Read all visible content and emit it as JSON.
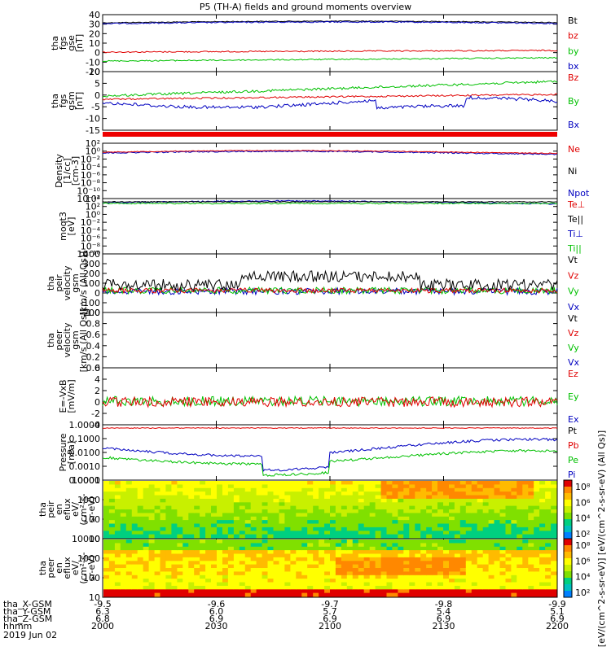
{
  "title": "P5 (TH-A) fields and ground moments overview",
  "chart_data": [
    {
      "id": "fgs_gse",
      "type": "line",
      "ylabel": [
        "tha",
        "fgs",
        "gse",
        "[nT]"
      ],
      "yticks": [
        "40",
        "30",
        "20",
        "10",
        "0",
        "-10",
        "-20"
      ],
      "ylim": [
        -20,
        40
      ],
      "series": [
        {
          "name": "Bt",
          "color": "#000000",
          "level": 33
        },
        {
          "name": "bz",
          "color": "#e00000",
          "level": -1
        },
        {
          "name": "by",
          "color": "#00c000",
          "level": -10
        },
        {
          "name": "bx",
          "color": "#0000c0",
          "level": 33
        }
      ]
    },
    {
      "id": "fgs_gsm",
      "type": "line",
      "ylabel": [
        "tha",
        "fgs",
        "gsm",
        "[nT]"
      ],
      "yticks": [
        "10",
        "5",
        "0",
        "-5",
        "-10",
        "-15"
      ],
      "ylim": [
        -18,
        10
      ],
      "series": [
        {
          "name": "Bz",
          "color": "#e00000",
          "level": -2
        },
        {
          "name": "By",
          "color": "#00c000",
          "level": 1
        },
        {
          "name": "Bx",
          "color": "#0000c0",
          "level": -4
        }
      ]
    },
    {
      "id": "density",
      "type": "line",
      "ylabel": [
        "Density",
        "[1/cc]",
        "[cm-3]"
      ],
      "yticks": [
        "10²",
        "10⁰",
        "10⁻²",
        "10⁻⁴",
        "10⁻⁶",
        "10⁻⁸",
        "10⁻¹⁰",
        "10⁻¹²"
      ],
      "series": [
        {
          "name": "Ne",
          "color": "#e00000"
        },
        {
          "name": "Ni",
          "color": "#000000"
        },
        {
          "name": "Npot",
          "color": "#0000c0"
        }
      ]
    },
    {
      "id": "temperature",
      "type": "line",
      "ylabel": [
        "moqt3",
        "[eV]"
      ],
      "yticks": [
        "10⁴",
        "10²",
        "10⁰",
        "10⁻²",
        "10⁻⁴",
        "10⁻⁶",
        "10⁻⁸",
        "10⁻¹⁰"
      ],
      "series": [
        {
          "name": "Te⊥",
          "color": "#e00000"
        },
        {
          "name": "Te||",
          "color": "#000000"
        },
        {
          "name": "Ti⊥",
          "color": "#0000c0"
        },
        {
          "name": "Ti||",
          "color": "#00c000"
        }
      ]
    },
    {
      "id": "peir_velocity",
      "type": "line",
      "ylabel": [
        "tha",
        "peir",
        "velocity",
        "gsm",
        "[km/s (All Qs)]"
      ],
      "yticks": [
        "400",
        "300",
        "200",
        "100",
        "0",
        "-100",
        "-200"
      ],
      "ylim": [
        -200,
        400
      ],
      "series": [
        {
          "name": "Vt",
          "color": "#000000"
        },
        {
          "name": "Vz",
          "color": "#e00000"
        },
        {
          "name": "Vy",
          "color": "#00c000"
        },
        {
          "name": "Vx",
          "color": "#0000c0"
        }
      ]
    },
    {
      "id": "peer_velocity",
      "type": "line",
      "ylabel": [
        "tha",
        "peer",
        "velocity",
        "gsm",
        "[km/s (All Qs)]"
      ],
      "yticks": [
        "1.0",
        "0.8",
        "0.6",
        "0.4",
        "0.2",
        "0.0"
      ],
      "ylim": [
        0,
        1
      ],
      "series": [
        {
          "name": "Vt",
          "color": "#000000"
        },
        {
          "name": "Vz",
          "color": "#e00000"
        },
        {
          "name": "Vy",
          "color": "#00c000"
        },
        {
          "name": "Vx",
          "color": "#0000c0"
        }
      ]
    },
    {
      "id": "efield",
      "type": "line",
      "ylabel": [
        "E=-VxB",
        "[mV/m]"
      ],
      "yticks": [
        "6",
        "4",
        "2",
        "0",
        "-2",
        "-4"
      ],
      "ylim": [
        -4,
        6
      ],
      "series": [
        {
          "name": "Ez",
          "color": "#e00000"
        },
        {
          "name": "Ey",
          "color": "#00c000"
        },
        {
          "name": "Ex",
          "color": "#0000c0"
        }
      ]
    },
    {
      "id": "pressure",
      "type": "line",
      "ylabel": [
        "Pressure",
        "[nPa]"
      ],
      "yticks": [
        "1.0000",
        "0.1000",
        "0.0100",
        "0.0010",
        "0.0001"
      ],
      "series": [
        {
          "name": "Pt",
          "color": "#000000"
        },
        {
          "name": "Pb",
          "color": "#e00000"
        },
        {
          "name": "Pe",
          "color": "#00c000"
        },
        {
          "name": "Pi",
          "color": "#0000c0"
        }
      ]
    },
    {
      "id": "peir_spec",
      "type": "heatmap",
      "ylabel": [
        "tha",
        "peir",
        "en",
        "eflux",
        "eV/",
        "(cm²-s-",
        "sr-eV)"
      ],
      "yticks": [
        "10000",
        "1000",
        "100",
        "10"
      ]
    },
    {
      "id": "peer_spec",
      "type": "heatmap",
      "ylabel": [
        "tha",
        "peer",
        "en",
        "eflux",
        "eV/",
        "(cm²-s-",
        "sr-eV)"
      ],
      "yticks": [
        "10000",
        "1000",
        "100",
        "10"
      ]
    }
  ],
  "colorbar": {
    "ticks": [
      "10⁸",
      "10⁶",
      "10⁴",
      "10²",
      "10⁸",
      "10⁶",
      "10⁴",
      "10²"
    ],
    "label": "[eV/(cm^2-s-sr-eV)]  [eV/(cm^2-s-sr-eV) (All Qs)]"
  },
  "x_axis": {
    "rows": [
      {
        "label": "tha_X-GSM",
        "values": [
          "-9.5",
          "-9.6",
          "-9.7",
          "-9.8",
          "-9.9"
        ]
      },
      {
        "label": "tha_Y-GSM",
        "values": [
          "6.3",
          "6.0",
          "5.7",
          "5.4",
          "5.1"
        ]
      },
      {
        "label": "tha_Z-GSM",
        "values": [
          "6.8",
          "6.9",
          "6.9",
          "6.9",
          "6.9"
        ]
      },
      {
        "label": "hhmm",
        "values": [
          "2000",
          "2030",
          "2100",
          "2130",
          "2200"
        ]
      }
    ],
    "date": "2019 Jun 02"
  }
}
